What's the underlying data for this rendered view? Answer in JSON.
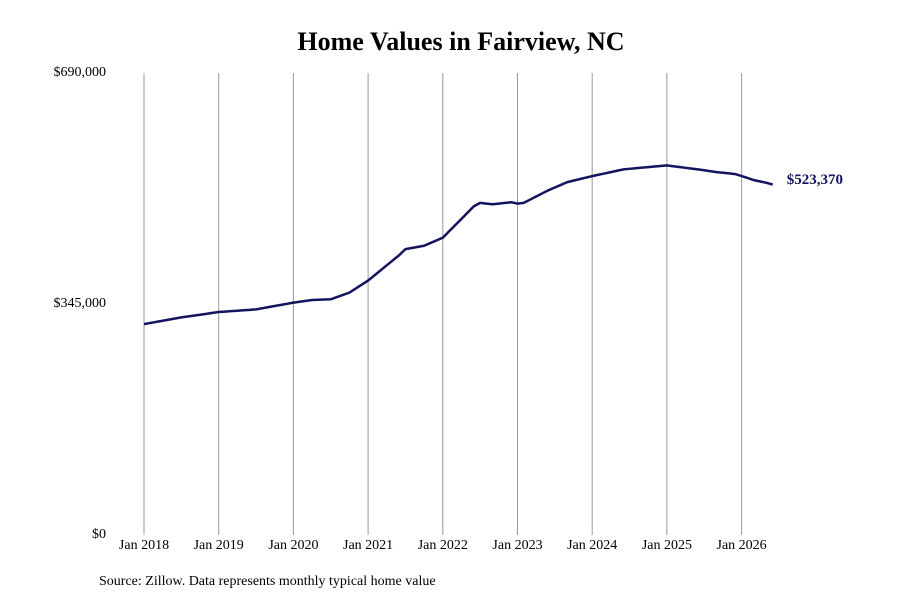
{
  "chart_data": {
    "type": "line",
    "title": "Home Values in Fairview, NC",
    "note": "Source: Zillow. Data represents monthly typical home value",
    "color": "#14145e",
    "ylim": [
      0,
      690000
    ],
    "yticks": [
      {
        "value": 0,
        "label": "$0"
      },
      {
        "value": 345000,
        "label": "$345,000"
      },
      {
        "value": 690000,
        "label": "$690,000"
      }
    ],
    "xticks": [
      {
        "value": "2018-01",
        "label": "Jan 2018"
      },
      {
        "value": "2019-01",
        "label": "Jan 2019"
      },
      {
        "value": "2020-01",
        "label": "Jan 2020"
      },
      {
        "value": "2021-01",
        "label": "Jan 2021"
      },
      {
        "value": "2022-01",
        "label": "Jan 2022"
      },
      {
        "value": "2023-01",
        "label": "Jan 2023"
      },
      {
        "value": "2024-01",
        "label": "Jan 2024"
      },
      {
        "value": "2025-01",
        "label": "Jan 2025"
      },
      {
        "value": "2026-01",
        "label": "Jan 2026"
      }
    ],
    "grid": "x",
    "x": [
      "2018-01",
      "2018-02",
      "2018-03",
      "2018-04",
      "2018-05",
      "2018-06",
      "2018-07",
      "2018-08",
      "2018-09",
      "2018-10",
      "2018-11",
      "2018-12",
      "2019-01",
      "2019-02",
      "2019-03",
      "2019-04",
      "2019-05",
      "2019-06",
      "2019-07",
      "2019-08",
      "2019-09",
      "2019-10",
      "2019-11",
      "2019-12",
      "2020-01",
      "2020-02",
      "2020-03",
      "2020-04",
      "2020-05",
      "2020-06",
      "2020-07",
      "2020-08",
      "2020-09",
      "2020-10",
      "2020-11",
      "2020-12",
      "2021-01",
      "2021-02",
      "2021-03",
      "2021-04",
      "2021-05",
      "2021-06",
      "2021-07",
      "2021-08",
      "2021-09",
      "2021-10",
      "2021-11",
      "2021-12",
      "2022-01",
      "2022-02",
      "2022-03",
      "2022-04",
      "2022-05",
      "2022-06",
      "2022-07",
      "2022-08",
      "2022-09",
      "2022-10",
      "2022-11",
      "2022-12",
      "2023-01",
      "2023-02",
      "2023-03",
      "2023-04",
      "2023-05",
      "2023-06",
      "2023-07",
      "2023-08",
      "2023-09",
      "2023-10",
      "2023-11",
      "2023-12",
      "2024-01",
      "2024-02",
      "2024-03",
      "2024-04",
      "2024-05",
      "2024-06",
      "2024-07",
      "2024-08",
      "2024-09",
      "2024-10",
      "2024-11",
      "2024-12",
      "2025-01",
      "2025-02",
      "2025-03",
      "2025-04",
      "2025-05",
      "2025-06",
      "2025-07",
      "2025-08",
      "2025-09",
      "2025-10",
      "2025-11",
      "2025-12",
      "2026-01",
      "2026-02",
      "2026-03",
      "2026-04",
      "2026-05",
      "2026-06"
    ],
    "values": [
      315000,
      316700,
      318300,
      320000,
      321700,
      323300,
      325000,
      326300,
      327700,
      329000,
      330300,
      331700,
      333000,
      333700,
      334300,
      335000,
      335700,
      336300,
      337000,
      338700,
      340300,
      342000,
      343700,
      345300,
      347000,
      348300,
      349700,
      351000,
      351300,
      351700,
      352000,
      355300,
      358700,
      362000,
      368000,
      374000,
      380000,
      387600,
      395200,
      402800,
      410400,
      418000,
      427000,
      428700,
      430300,
      432000,
      436000,
      440000,
      444000,
      453400,
      462800,
      472200,
      481600,
      491000,
      496000,
      495000,
      494000,
      495000,
      496000,
      497000,
      495000,
      496000,
      500800,
      505500,
      510300,
      515000,
      519000,
      523000,
      527000,
      529300,
      531500,
      533800,
      536000,
      538000,
      540000,
      542000,
      544000,
      546000,
      546900,
      547700,
      548600,
      549400,
      550300,
      551100,
      552000,
      550800,
      549600,
      548400,
      547200,
      546000,
      544700,
      543300,
      542000,
      541000,
      540000,
      539000,
      536000,
      533000,
      530000,
      528000,
      526000,
      523370
    ],
    "value_labels": [
      null,
      null,
      null,
      null,
      null,
      null,
      null,
      null,
      null,
      null,
      null,
      null,
      null,
      null,
      null,
      null,
      null,
      null,
      null,
      null,
      null,
      null,
      null,
      null,
      null,
      null,
      null,
      null,
      null,
      null,
      null,
      null,
      null,
      null,
      null,
      null,
      null,
      null,
      null,
      null,
      null,
      null,
      null,
      null,
      null,
      null,
      null,
      null,
      null,
      null,
      null,
      null,
      null,
      null,
      null,
      null,
      null,
      null,
      null,
      null,
      null,
      null,
      null,
      null,
      null,
      null,
      null,
      null,
      null,
      null,
      null,
      null,
      null,
      null,
      null,
      null,
      null,
      null,
      null,
      null,
      null,
      null,
      null,
      null,
      null,
      null,
      null,
      null,
      null,
      null,
      null,
      null,
      null,
      null,
      null,
      null,
      null,
      null,
      null,
      null,
      null,
      "$523,370"
    ]
  }
}
